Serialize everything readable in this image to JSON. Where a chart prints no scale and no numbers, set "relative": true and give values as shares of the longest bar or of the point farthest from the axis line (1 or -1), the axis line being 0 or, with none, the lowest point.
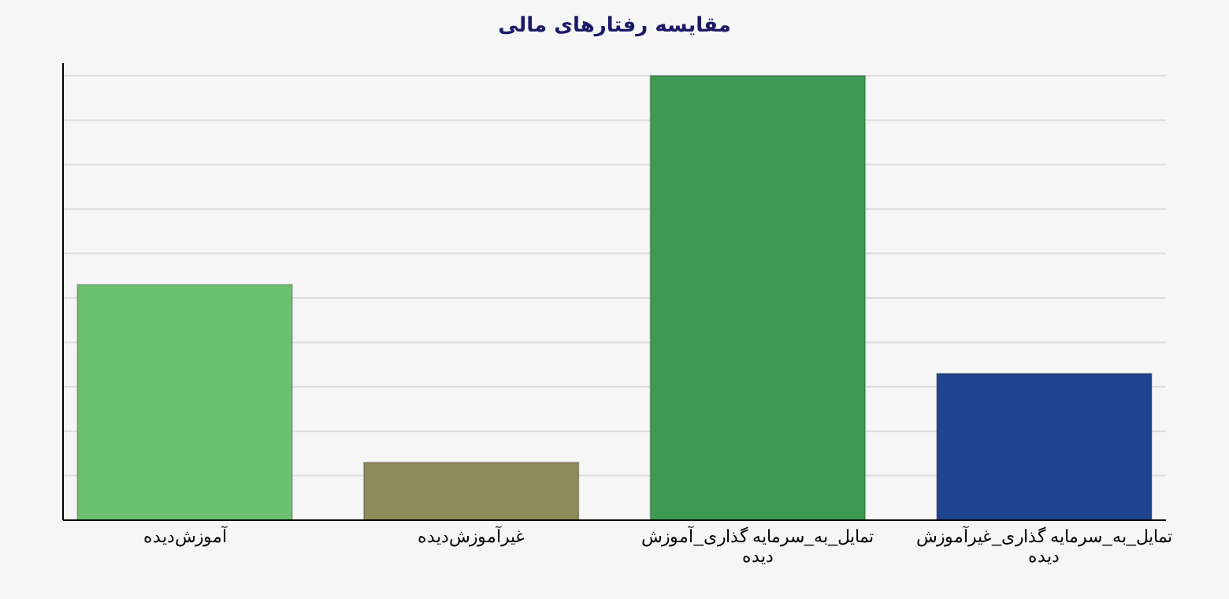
{
  "chart_data": {
    "type": "bar",
    "title": "مقایسه رفتارهای مالی",
    "relative": true,
    "grid": "y",
    "categories": [
      "آموزش‌دیده",
      "غیرآموزش‌دیده",
      "تمایل_به_سرمایه گذاری_آموزش دیده",
      "تمایل_به_سرمایه گذاری_غیرآموزش دیده"
    ],
    "values": [
      0.53,
      0.13,
      1,
      0.33
    ],
    "colors": [
      "#6cc16f",
      "#8f8a5a",
      "#3c9a52",
      "#1f4590"
    ]
  }
}
